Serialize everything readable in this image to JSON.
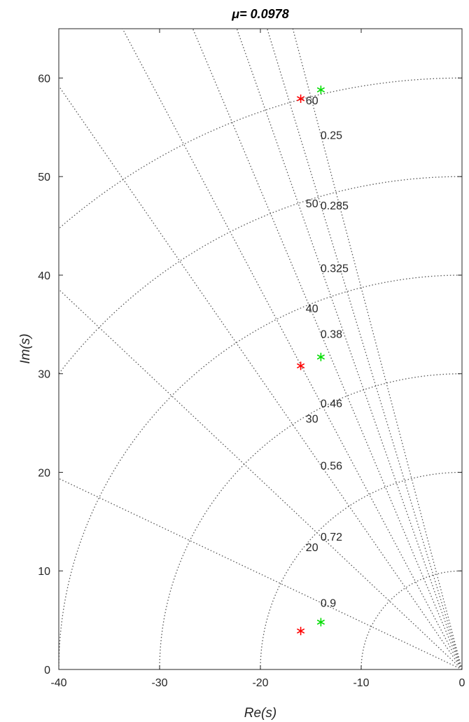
{
  "chart_data": {
    "type": "scatter",
    "title": "μ= 0.0978",
    "xlabel": "Re(s)",
    "ylabel": "Im(s)",
    "xlim": [
      -40,
      0
    ],
    "ylim": [
      0,
      65
    ],
    "x_ticks": [
      -40,
      -30,
      -20,
      -10,
      0
    ],
    "y_ticks": [
      0,
      10,
      20,
      30,
      40,
      50,
      60
    ],
    "grid": {
      "type": "s-plane",
      "damping_ratios": [
        0.25,
        0.285,
        0.325,
        0.38,
        0.46,
        0.56,
        0.72,
        0.9
      ],
      "damping_labels": [
        "0.25",
        "0.285",
        "0.325",
        "0.38",
        "0.46",
        "0.56",
        "0.72",
        "0.9"
      ],
      "natural_frequencies": [
        10,
        20,
        30,
        40,
        50,
        60
      ],
      "frequency_labels": [
        "20",
        "30",
        "40",
        "50",
        "60"
      ]
    },
    "series": [
      {
        "color": "#ff0000",
        "marker": "asterisk",
        "points": [
          [
            -16,
            3.9
          ],
          [
            -16,
            30.8
          ],
          [
            -16,
            57.9
          ]
        ]
      },
      {
        "color": "#00dd00",
        "marker": "asterisk",
        "points": [
          [
            -14,
            4.8
          ],
          [
            -14,
            31.7
          ],
          [
            -14,
            58.8
          ]
        ]
      }
    ]
  }
}
